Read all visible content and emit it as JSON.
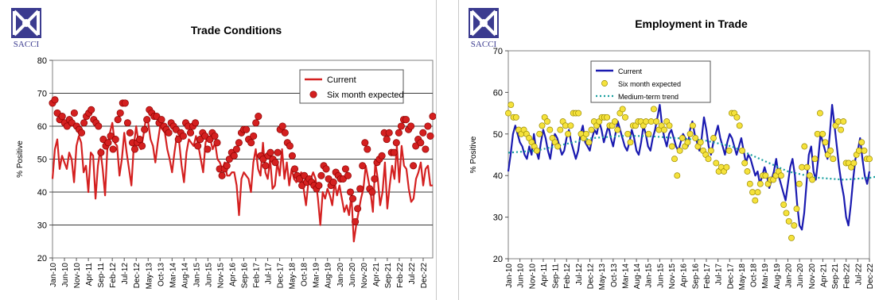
{
  "logo": {
    "text": "SACCI"
  },
  "chart_data": [
    {
      "type": "line",
      "title": "Trade Conditions",
      "ylabel": "% Positive",
      "ylim": [
        20,
        80
      ],
      "yticks": [
        20,
        30,
        40,
        50,
        60,
        70,
        80
      ],
      "x_tick_labels": [
        "Jan-10",
        "Jun-10",
        "Nov-10",
        "Apr-11",
        "Sep-11",
        "Feb-12",
        "Jul-12",
        "Dec-12",
        "May-13",
        "Oct-13",
        "Mar-14",
        "Aug-14",
        "Jan-15",
        "Jun-15",
        "Nov-15",
        "Apr-16",
        "Sep-16",
        "Feb-17",
        "Jul-17",
        "Dec-17",
        "May-18",
        "Oct-18",
        "Mar-19",
        "Aug-19",
        "Jan-20",
        "Jun-20",
        "Nov-20",
        "Apr-21",
        "Sep-21",
        "Feb-22",
        "Jul-22",
        "Dec-22"
      ],
      "grid": true,
      "legend_position": "top-right",
      "colors": {
        "current": "#d42020",
        "expected": "#d42020",
        "expected_edge": "#8b0000"
      },
      "series": [
        {
          "name": "Current",
          "style": "line",
          "values": [
            44,
            53,
            56,
            47,
            51,
            49,
            47,
            52,
            50,
            43,
            54,
            57,
            55,
            46,
            48,
            40,
            52,
            51,
            38,
            48,
            53,
            47,
            39,
            54,
            58,
            61,
            55,
            54,
            45,
            50,
            58,
            52,
            47,
            42,
            54,
            60,
            55,
            53,
            57,
            62,
            61,
            56,
            54,
            49,
            55,
            60,
            59,
            58,
            53,
            50,
            46,
            52,
            57,
            55,
            48,
            43,
            52,
            56,
            55,
            54,
            57,
            54,
            50,
            46,
            55,
            57,
            56,
            53,
            55,
            50,
            49,
            47,
            49,
            45,
            45,
            46,
            46,
            42,
            33,
            44,
            46,
            45,
            44,
            40,
            49,
            53,
            47,
            45,
            55,
            46,
            44,
            50,
            41,
            42,
            49,
            45,
            53,
            44,
            49,
            42,
            47,
            44,
            43,
            44,
            46,
            41,
            36,
            43,
            44,
            46,
            44,
            38,
            30,
            40,
            38,
            41,
            39,
            36,
            43,
            39,
            42,
            38,
            34,
            36,
            33,
            39,
            25,
            30,
            34,
            38,
            41,
            48,
            44,
            40,
            34,
            49,
            44,
            36,
            40,
            49,
            35,
            42,
            48,
            44,
            54,
            43,
            54,
            48,
            47,
            41,
            37,
            38,
            44,
            46,
            49,
            42,
            47,
            48,
            42,
            42
          ]
        },
        {
          "name": "Six month expected",
          "style": "points",
          "values": [
            67,
            68,
            64,
            62,
            63,
            61,
            60,
            62,
            61,
            64,
            60,
            59,
            58,
            61,
            63,
            64,
            65,
            62,
            61,
            60,
            52,
            56,
            54,
            55,
            57,
            53,
            56,
            62,
            64,
            67,
            67,
            61,
            58,
            55,
            53,
            55,
            56,
            54,
            59,
            62,
            65,
            64,
            63,
            63,
            61,
            62,
            60,
            59,
            58,
            61,
            60,
            59,
            56,
            58,
            57,
            61,
            60,
            58,
            60,
            61,
            54,
            56,
            58,
            57,
            53,
            56,
            58,
            57,
            55,
            47,
            45,
            47,
            48,
            50,
            52,
            51,
            53,
            55,
            58,
            59,
            59,
            56,
            55,
            57,
            61,
            63,
            51,
            50,
            48,
            51,
            52,
            50,
            49,
            52,
            59,
            60,
            58,
            55,
            54,
            51,
            47,
            45,
            44,
            42,
            45,
            43,
            44,
            43,
            42,
            41,
            42,
            45,
            48,
            47,
            44,
            42,
            43,
            46,
            45,
            44,
            44,
            47,
            45,
            40,
            38,
            31,
            35,
            41,
            48,
            55,
            53,
            41,
            40,
            44,
            49,
            50,
            51,
            58,
            56,
            58,
            52,
            52,
            55,
            58,
            60,
            62,
            62,
            59,
            60,
            48,
            54,
            56,
            55,
            58,
            53,
            60,
            57,
            63
          ]
        }
      ]
    },
    {
      "type": "line",
      "title": "Employment in Trade",
      "ylabel": "% Positive",
      "ylim": [
        20,
        70
      ],
      "yticks": [
        20,
        30,
        40,
        50,
        60,
        70
      ],
      "x_tick_labels": [
        "Jan-10",
        "Jun-10",
        "Nov-10",
        "Apr-11",
        "Sep-11",
        "Feb-12",
        "Jul-12",
        "Dec-12",
        "May-13",
        "Oct-13",
        "Mar-14",
        "Aug-14",
        "Jan-15",
        "Jun-15",
        "Nov-15",
        "Apr-16",
        "Sep-16",
        "Feb-17",
        "Jul-17",
        "Dec-17",
        "May-18",
        "Oct-18",
        "Mar-19",
        "Aug-19",
        "Jan-20",
        "Jun-20",
        "Nov-20",
        "Apr-21",
        "Sep-21",
        "Feb-22",
        "Jul-22",
        "Dec-22"
      ],
      "grid": false,
      "legend_position": "top-left",
      "colors": {
        "current": "#1a1ab0",
        "expected_fill": "#f5e23c",
        "expected_edge": "#9a8a00",
        "trend": "#1aa0a0"
      },
      "series": [
        {
          "name": "Current",
          "style": "line",
          "values": [
            41,
            45,
            50,
            52,
            50,
            48,
            47,
            45,
            44,
            47,
            45,
            50,
            46,
            44,
            48,
            51,
            49,
            46,
            44,
            48,
            50,
            49,
            47,
            45,
            46,
            49,
            51,
            48,
            46,
            44,
            46,
            50,
            52,
            48,
            47,
            46,
            49,
            51,
            50,
            53,
            51,
            48,
            50,
            52,
            49,
            47,
            50,
            53,
            51,
            49,
            47,
            46,
            48,
            51,
            49,
            46,
            45,
            48,
            52,
            50,
            47,
            46,
            49,
            51,
            54,
            57,
            52,
            49,
            47,
            50,
            51,
            49,
            47,
            46,
            48,
            50,
            49,
            47,
            51,
            53,
            50,
            48,
            46,
            49,
            54,
            51,
            47,
            45,
            48,
            50,
            52,
            49,
            47,
            45,
            48,
            50,
            49,
            47,
            45,
            47,
            49,
            46,
            43,
            45,
            44,
            42,
            40,
            41,
            38,
            40,
            42,
            40,
            37,
            39,
            41,
            44,
            40,
            38,
            36,
            34,
            38,
            42,
            44,
            40,
            33,
            28,
            27,
            31,
            38,
            45,
            47,
            41,
            39,
            44,
            50,
            48,
            46,
            44,
            50,
            57,
            52,
            47,
            42,
            38,
            35,
            30,
            28,
            33,
            39,
            44,
            46,
            49,
            44,
            40,
            38,
            41
          ]
        },
        {
          "name": "Six month expected",
          "style": "points",
          "values": [
            55,
            57,
            54,
            54,
            51,
            50,
            51,
            50,
            49,
            48,
            47,
            46,
            50,
            52,
            54,
            53,
            51,
            49,
            48,
            47,
            51,
            53,
            52,
            50,
            52,
            55,
            55,
            55,
            50,
            49,
            50,
            48,
            51,
            53,
            52,
            53,
            54,
            54,
            54,
            52,
            52,
            53,
            51,
            55,
            56,
            54,
            50,
            48,
            52,
            52,
            53,
            53,
            52,
            53,
            50,
            53,
            56,
            53,
            51,
            52,
            51,
            53,
            52,
            47,
            44,
            40,
            46,
            49,
            47,
            48,
            50,
            52,
            49,
            47,
            48,
            46,
            45,
            44,
            46,
            49,
            43,
            41,
            42,
            41,
            42,
            46,
            55,
            55,
            54,
            52,
            46,
            43,
            41,
            38,
            36,
            34,
            36,
            38,
            40,
            40,
            38,
            39,
            39,
            40,
            41,
            40,
            33,
            31,
            29,
            25,
            28,
            32,
            38,
            42,
            47,
            42,
            40,
            39,
            44,
            50,
            55,
            50,
            48,
            45,
            46,
            44,
            52,
            53,
            51,
            53,
            43,
            43,
            42,
            43,
            45,
            46,
            48,
            46,
            44,
            44
          ]
        },
        {
          "name": "Medium-term trend",
          "style": "dotted",
          "points": [
            [
              0,
              45.5
            ],
            [
              12,
              46
            ],
            [
              24,
              47.5
            ],
            [
              36,
              49
            ],
            [
              48,
              49.5
            ],
            [
              60,
              49.5
            ],
            [
              72,
              49
            ],
            [
              84,
              48.5
            ],
            [
              96,
              47
            ],
            [
              108,
              44
            ],
            [
              120,
              41
            ],
            [
              132,
              39.5
            ],
            [
              144,
              39
            ],
            [
              156,
              39.5
            ],
            [
              160,
              40
            ]
          ]
        }
      ]
    }
  ]
}
